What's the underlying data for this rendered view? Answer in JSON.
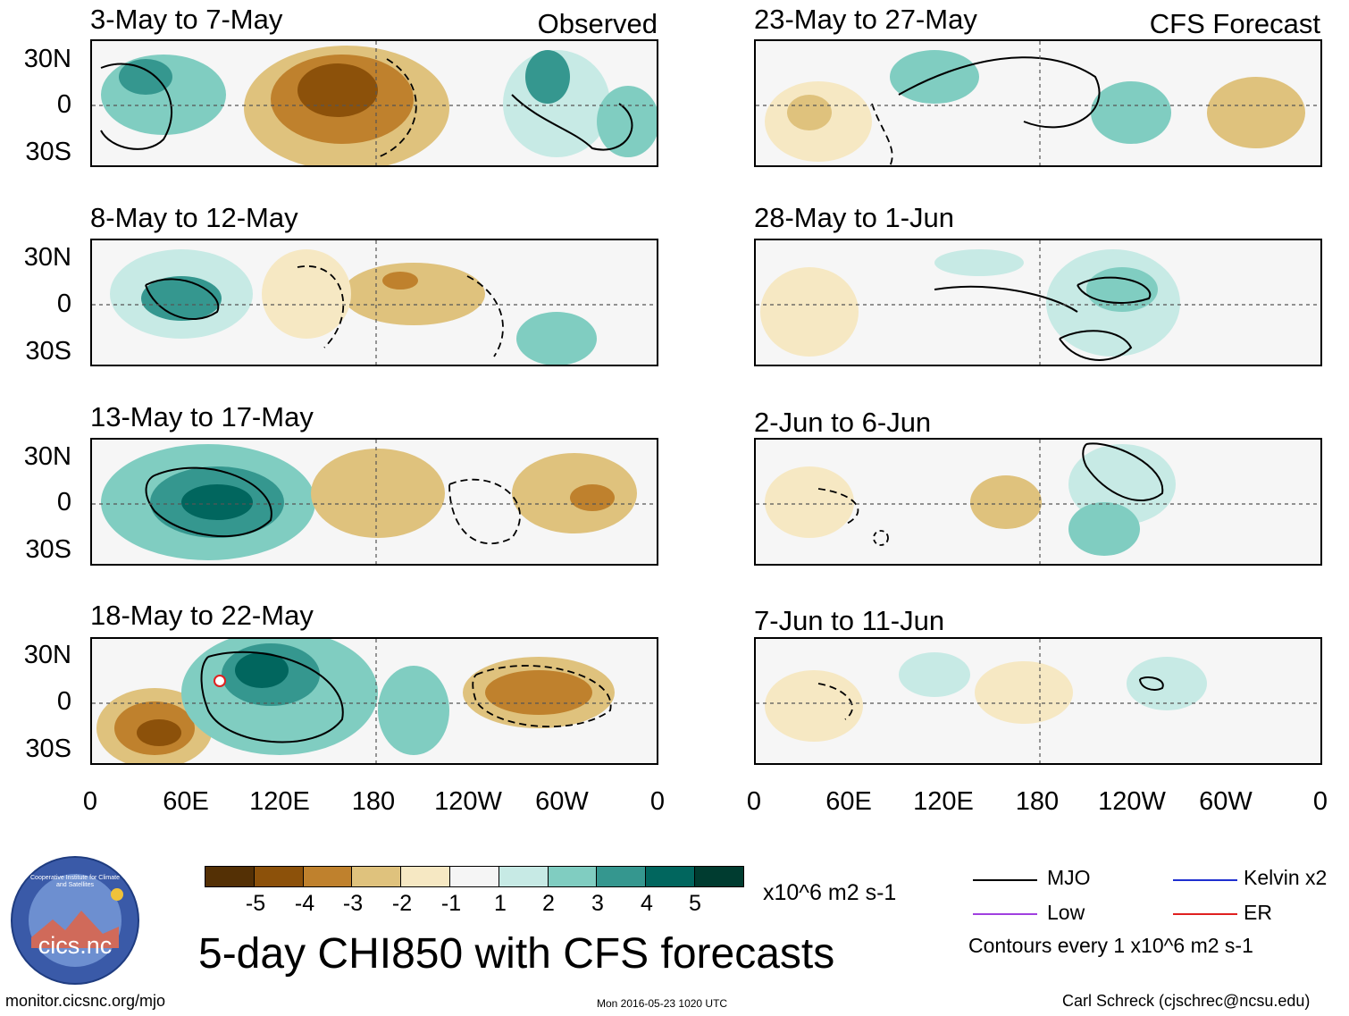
{
  "panels_left_label": "Observed",
  "panels_right_label": "CFS Forecast",
  "observed": [
    {
      "title": "3-May to 7-May"
    },
    {
      "title": "8-May to 12-May"
    },
    {
      "title": "13-May to 17-May"
    },
    {
      "title": "18-May to 22-May"
    }
  ],
  "forecast": [
    {
      "title": "23-May to 27-May"
    },
    {
      "title": "28-May to 1-Jun"
    },
    {
      "title": "2-Jun to 6-Jun"
    },
    {
      "title": "7-Jun to 11-Jun"
    }
  ],
  "lat_labels": [
    "30N",
    "0",
    "30S"
  ],
  "lon_labels": [
    "0",
    "60E",
    "120E",
    "180",
    "120W",
    "60W",
    "0"
  ],
  "colorbar": {
    "colors": [
      "#543005",
      "#8c510a",
      "#bf812d",
      "#dfc27d",
      "#f6e8c3",
      "#f5f5f5",
      "#c7eae5",
      "#80cdc1",
      "#35978f",
      "#01665e",
      "#003c30"
    ],
    "labels": [
      "-5",
      "-4",
      "-3",
      "-2",
      "-1",
      "1",
      "2",
      "3",
      "4",
      "5"
    ],
    "units": "x10^6 m2 s-1"
  },
  "legend": {
    "mjo": "MJO",
    "kelvin": "Kelvin x2",
    "low": "Low",
    "er": "ER",
    "mjo_color": "#000000",
    "kelvin_color": "#1f2fd0",
    "low_color": "#a040e0",
    "er_color": "#e02020",
    "contours_note": "Contours every 1 x10^6 m2 s-1"
  },
  "title": "5-day CHI850 with CFS forecasts",
  "logo_text": "cics.nc",
  "logo_ring_text": "Cooperative Institute for Climate and Satellites",
  "footer": {
    "url": "monitor.cicsnc.org/mjo",
    "timestamp": "Mon 2016-05-23 1020 UTC",
    "author": "Carl Schreck (cjschrec@ncsu.edu)"
  }
}
